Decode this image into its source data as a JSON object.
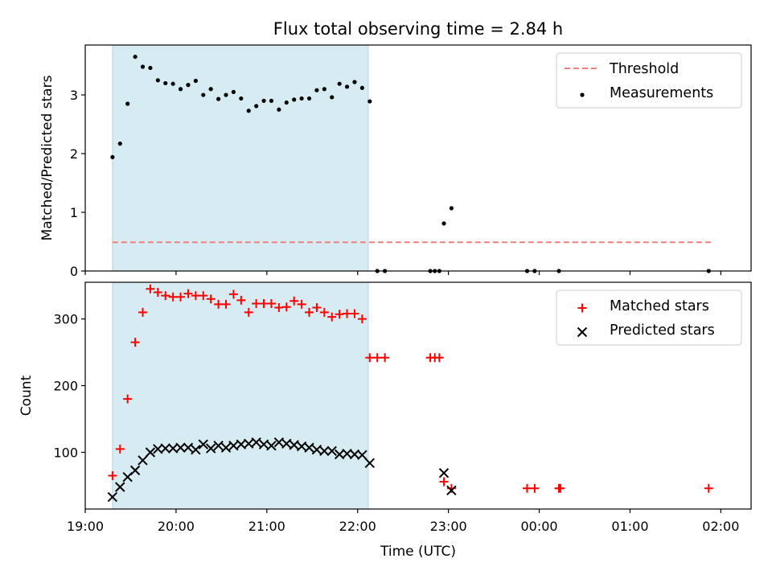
{
  "chart_data": {
    "title": "Flux total observing time = 2.84 h",
    "xlabel": "Time (UTC)",
    "x_axis_type": "time",
    "x_range": [
      "19:00",
      "02:20"
    ],
    "x_ticks": [
      "19:00",
      "20:00",
      "21:00",
      "22:00",
      "23:00",
      "00:00",
      "01:00",
      "02:00"
    ],
    "highlight_span": {
      "start": "19:18",
      "end": "22:07",
      "color": "#add8e6"
    },
    "panels": [
      {
        "type": "scatter",
        "ylabel": "Matched/Predicted stars",
        "ylim": [
          0,
          3.85
        ],
        "y_ticks": [
          0,
          1,
          2,
          3
        ],
        "legend_position": "upper-right",
        "threshold": {
          "name": "Threshold",
          "value": 0.49,
          "x_start": "19:18",
          "x_end": "01:54",
          "color": "#f08080",
          "style": "dashed"
        },
        "series": [
          {
            "name": "Measurements",
            "marker": "dot",
            "color": "#000000",
            "points": [
              [
                "19:18",
                1.94
              ],
              [
                "19:23",
                2.17
              ],
              [
                "19:28",
                2.85
              ],
              [
                "19:33",
                3.65
              ],
              [
                "19:38",
                3.48
              ],
              [
                "19:43",
                3.46
              ],
              [
                "19:48",
                3.25
              ],
              [
                "19:53",
                3.2
              ],
              [
                "19:58",
                3.19
              ],
              [
                "20:03",
                3.1
              ],
              [
                "20:08",
                3.17
              ],
              [
                "20:13",
                3.24
              ],
              [
                "20:18",
                3.0
              ],
              [
                "20:23",
                3.1
              ],
              [
                "20:28",
                2.93
              ],
              [
                "20:33",
                3.0
              ],
              [
                "20:38",
                3.05
              ],
              [
                "20:43",
                2.94
              ],
              [
                "20:48",
                2.73
              ],
              [
                "20:53",
                2.81
              ],
              [
                "20:58",
                2.9
              ],
              [
                "21:03",
                2.9
              ],
              [
                "21:08",
                2.75
              ],
              [
                "21:13",
                2.87
              ],
              [
                "21:18",
                2.92
              ],
              [
                "21:23",
                2.94
              ],
              [
                "21:28",
                2.94
              ],
              [
                "21:33",
                3.08
              ],
              [
                "21:38",
                3.1
              ],
              [
                "21:43",
                2.96
              ],
              [
                "21:48",
                3.19
              ],
              [
                "21:53",
                3.14
              ],
              [
                "21:58",
                3.22
              ],
              [
                "22:03",
                3.12
              ],
              [
                "22:08",
                2.89
              ],
              [
                "22:13",
                0.0
              ],
              [
                "22:18",
                0.0
              ],
              [
                "22:48",
                0.0
              ],
              [
                "22:51",
                0.0
              ],
              [
                "22:54",
                0.0
              ],
              [
                "22:57",
                0.81
              ],
              [
                "23:02",
                1.07
              ],
              [
                "23:52",
                0.0
              ],
              [
                "23:57",
                0.0
              ],
              [
                "00:13",
                0.0
              ],
              [
                "01:52",
                0.0
              ]
            ]
          }
        ]
      },
      {
        "type": "scatter",
        "ylabel": "Count",
        "ylim": [
          15,
          355
        ],
        "y_ticks": [
          100,
          200,
          300
        ],
        "legend_position": "upper-right",
        "series": [
          {
            "name": "Matched stars",
            "marker": "plus",
            "color": "#ff0000",
            "points": [
              [
                "19:18",
                65
              ],
              [
                "19:23",
                105
              ],
              [
                "19:28",
                180
              ],
              [
                "19:33",
                265
              ],
              [
                "19:38",
                310
              ],
              [
                "19:43",
                345
              ],
              [
                "19:48",
                340
              ],
              [
                "19:53",
                335
              ],
              [
                "19:58",
                333
              ],
              [
                "20:03",
                333
              ],
              [
                "20:08",
                338
              ],
              [
                "20:13",
                335
              ],
              [
                "20:18",
                335
              ],
              [
                "20:23",
                330
              ],
              [
                "20:28",
                322
              ],
              [
                "20:33",
                322
              ],
              [
                "20:38",
                337
              ],
              [
                "20:43",
                328
              ],
              [
                "20:48",
                310
              ],
              [
                "20:53",
                323
              ],
              [
                "20:58",
                323
              ],
              [
                "21:03",
                323
              ],
              [
                "21:08",
                317
              ],
              [
                "21:13",
                318
              ],
              [
                "21:18",
                327
              ],
              [
                "21:23",
                322
              ],
              [
                "21:28",
                310
              ],
              [
                "21:33",
                317
              ],
              [
                "21:38",
                310
              ],
              [
                "21:43",
                303
              ],
              [
                "21:48",
                307
              ],
              [
                "21:53",
                308
              ],
              [
                "21:58",
                308
              ],
              [
                "22:03",
                300
              ],
              [
                "22:08",
                242
              ],
              [
                "22:13",
                242
              ],
              [
                "22:18",
                242
              ],
              [
                "22:48",
                242
              ],
              [
                "22:51",
                242
              ],
              [
                "22:54",
                242
              ],
              [
                "22:57",
                56
              ],
              [
                "23:02",
                46
              ],
              [
                "23:52",
                46
              ],
              [
                "23:57",
                46
              ],
              [
                "00:13",
                46
              ],
              [
                "00:14",
                46
              ],
              [
                "01:52",
                46
              ]
            ]
          },
          {
            "name": "Predicted stars",
            "marker": "x",
            "color": "#000000",
            "points": [
              [
                "19:18",
                33
              ],
              [
                "19:23",
                48
              ],
              [
                "19:28",
                63
              ],
              [
                "19:33",
                73
              ],
              [
                "19:38",
                88
              ],
              [
                "19:43",
                100
              ],
              [
                "19:48",
                105
              ],
              [
                "19:53",
                106
              ],
              [
                "19:58",
                106
              ],
              [
                "20:03",
                107
              ],
              [
                "20:08",
                107
              ],
              [
                "20:13",
                104
              ],
              [
                "20:18",
                112
              ],
              [
                "20:23",
                106
              ],
              [
                "20:28",
                110
              ],
              [
                "20:33",
                107
              ],
              [
                "20:38",
                110
              ],
              [
                "20:43",
                112
              ],
              [
                "20:48",
                113
              ],
              [
                "20:53",
                115
              ],
              [
                "20:58",
                112
              ],
              [
                "21:03",
                110
              ],
              [
                "21:08",
                115
              ],
              [
                "21:13",
                113
              ],
              [
                "21:18",
                111
              ],
              [
                "21:23",
                109
              ],
              [
                "21:28",
                107
              ],
              [
                "21:33",
                104
              ],
              [
                "21:38",
                102
              ],
              [
                "21:43",
                102
              ],
              [
                "21:48",
                97
              ],
              [
                "21:53",
                98
              ],
              [
                "21:58",
                97
              ],
              [
                "22:03",
                96
              ],
              [
                "22:08",
                84
              ],
              [
                "22:57",
                69
              ],
              [
                "23:02",
                43
              ]
            ]
          }
        ]
      }
    ]
  }
}
